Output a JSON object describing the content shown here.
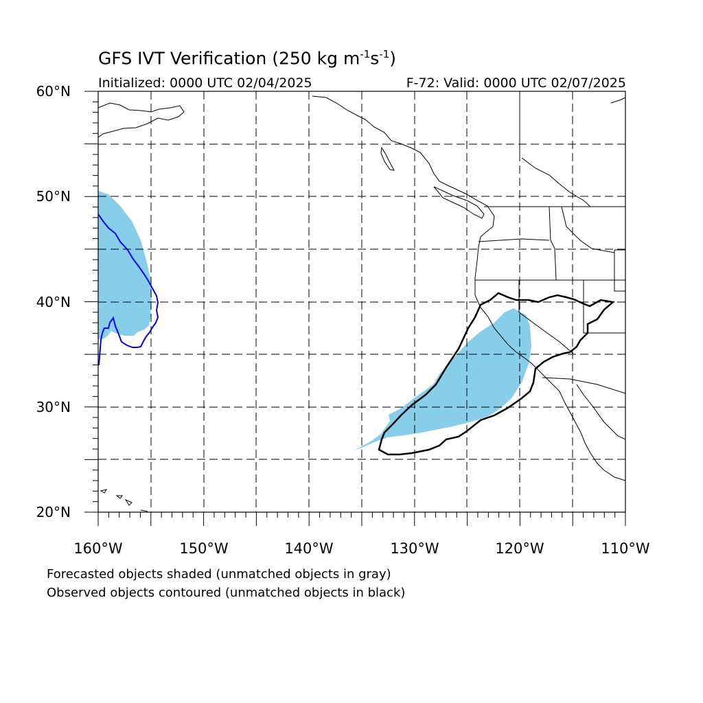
{
  "title": {
    "prefix": "GFS IVT Verification (250 kg m",
    "exp1": "-1",
    "mid": "s",
    "exp2": "-1",
    "suffix": ")"
  },
  "initialized": "Initialized: 0000 UTC 02/04/2025",
  "valid": "F-72: Valid: 0000 UTC 02/07/2025",
  "notes": {
    "forecast": "Forecasted objects shaded (unmatched objects in gray)",
    "observed": "Observed objects contoured (unmatched objects in black)"
  },
  "colors": {
    "forecast_fill": "#87CEEB",
    "observed_matched": "#0000FF",
    "observed_unmatched": "#000000",
    "grid": "#000000"
  },
  "map": {
    "lat_range": [
      20,
      60
    ],
    "lon_range": [
      -160,
      -110
    ],
    "lat_labels": [
      "20°N",
      "30°N",
      "40°N",
      "50°N",
      "60°N"
    ],
    "lon_labels": [
      "160°W",
      "150°W",
      "140°W",
      "130°W",
      "120°W",
      "110°W"
    ],
    "grid_interval_deg": 5
  }
}
